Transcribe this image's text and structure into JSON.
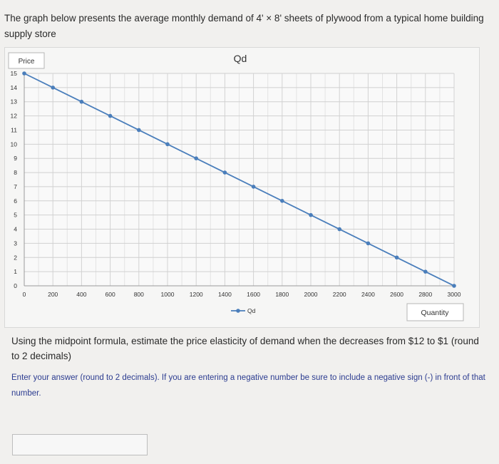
{
  "intro_text": "The graph below presents the average monthly demand of 4' × 8' sheets of plywood from a typical home building supply store",
  "question_text": "Using the midpoint formula, estimate the price elasticity of demand when the decreases from $12 to $1 (round to 2 decimals)",
  "instruction_text": "Enter your answer (round to 2 decimals). If you are entering a negative number be sure to include a negative sign (-) in front of that number.",
  "answer": {
    "value": ""
  },
  "chart_data": {
    "type": "line",
    "title": "Qd",
    "ylabel": "Price",
    "xlabel": "Quantity",
    "legend": "bottom",
    "grid": true,
    "xlim": [
      0,
      3000
    ],
    "ylim": [
      0,
      15
    ],
    "x_ticks": [
      0,
      200,
      400,
      600,
      800,
      1000,
      1200,
      1400,
      1600,
      1800,
      2000,
      2200,
      2400,
      2600,
      2800,
      3000
    ],
    "y_ticks": [
      0,
      1,
      2,
      3,
      4,
      5,
      6,
      7,
      8,
      9,
      10,
      11,
      12,
      13,
      14,
      15
    ],
    "series": [
      {
        "name": "Qd",
        "color": "#4a7ebb",
        "x": [
          0,
          200,
          400,
          600,
          800,
          1000,
          1200,
          1400,
          1600,
          1800,
          2000,
          2200,
          2400,
          2600,
          2800,
          3000
        ],
        "y": [
          15,
          14,
          13,
          12,
          11,
          10,
          9,
          8,
          7,
          6,
          5,
          4,
          3,
          2,
          1,
          0
        ]
      }
    ]
  }
}
